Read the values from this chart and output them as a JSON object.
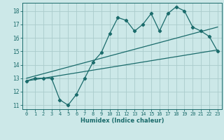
{
  "title": "",
  "xlabel": "Humidex (Indice chaleur)",
  "bg_color": "#cce8e8",
  "grid_color": "#aacccc",
  "line_color": "#1a6b6b",
  "xlim": [
    -0.5,
    23.5
  ],
  "ylim": [
    10.7,
    18.6
  ],
  "xticks": [
    0,
    1,
    2,
    3,
    4,
    5,
    6,
    7,
    8,
    9,
    10,
    11,
    12,
    13,
    14,
    15,
    16,
    17,
    18,
    19,
    20,
    21,
    22,
    23
  ],
  "yticks": [
    11,
    12,
    13,
    14,
    15,
    16,
    17,
    18
  ],
  "main_x": [
    0,
    1,
    2,
    3,
    4,
    5,
    6,
    7,
    8,
    9,
    10,
    11,
    12,
    13,
    14,
    15,
    16,
    17,
    18,
    19,
    20,
    21,
    22,
    23
  ],
  "main_y": [
    12.8,
    13.0,
    13.0,
    13.0,
    11.4,
    11.0,
    11.8,
    13.0,
    14.2,
    14.9,
    16.3,
    17.5,
    17.3,
    16.5,
    17.0,
    17.8,
    16.5,
    17.8,
    18.3,
    18.0,
    16.8,
    16.5,
    16.1,
    15.0
  ],
  "upper_line_x": [
    0,
    23
  ],
  "upper_line_y": [
    13.0,
    16.8
  ],
  "lower_line_x": [
    0,
    23
  ],
  "lower_line_y": [
    12.8,
    15.1
  ]
}
